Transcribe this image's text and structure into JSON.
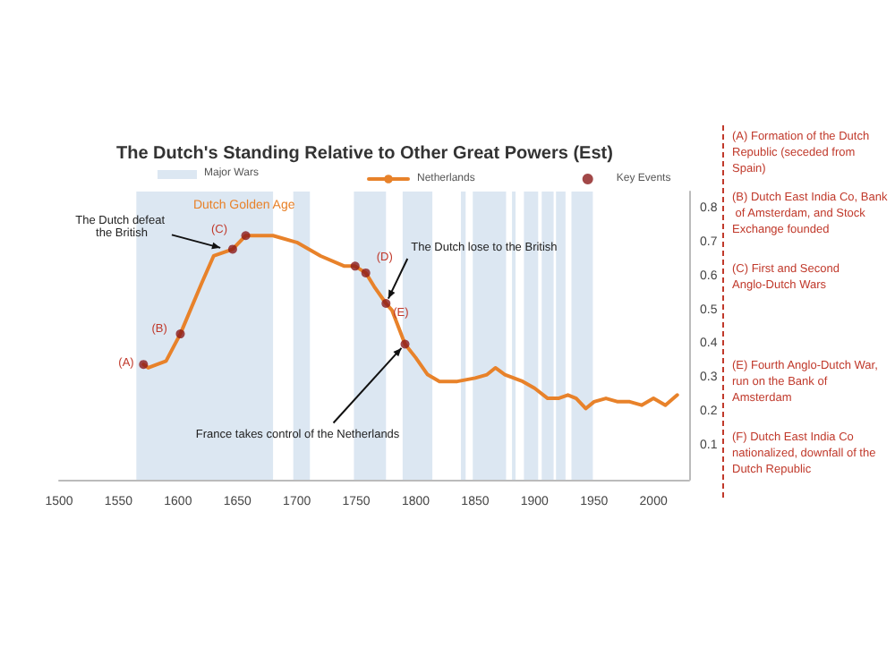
{
  "chart_data": {
    "type": "line",
    "title": "The Dutch's Standing Relative to Other Great Powers (Est)",
    "xlim": [
      1500,
      2030
    ],
    "xticks": [
      1500,
      1550,
      1600,
      1650,
      1700,
      1750,
      1800,
      1850,
      1900,
      1950,
      2000
    ],
    "ylim": [
      0,
      0.85
    ],
    "yticks": [
      0.1,
      0.2,
      0.3,
      0.4,
      0.5,
      0.6,
      0.7,
      0.8
    ],
    "grid": false,
    "legend": "top",
    "marker": "none",
    "line_style": "solid",
    "series": [
      {
        "name": "Netherlands",
        "color": "#e8822a",
        "x": [
          1571,
          1575,
          1590,
          1602,
          1620,
          1630,
          1646,
          1657,
          1670,
          1680,
          1700,
          1720,
          1740,
          1749,
          1758,
          1765,
          1775,
          1780,
          1791,
          1800,
          1810,
          1820,
          1835,
          1850,
          1860,
          1867,
          1875,
          1890,
          1900,
          1911,
          1920,
          1928,
          1935,
          1943,
          1950,
          1960,
          1970,
          1980,
          1990,
          2000,
          2010,
          2020
        ],
        "values": [
          0.34,
          0.33,
          0.35,
          0.43,
          0.58,
          0.66,
          0.68,
          0.72,
          0.72,
          0.72,
          0.7,
          0.66,
          0.63,
          0.63,
          0.61,
          0.57,
          0.52,
          0.5,
          0.4,
          0.36,
          0.31,
          0.29,
          0.29,
          0.3,
          0.31,
          0.33,
          0.31,
          0.29,
          0.27,
          0.24,
          0.24,
          0.25,
          0.24,
          0.21,
          0.23,
          0.24,
          0.23,
          0.23,
          0.22,
          0.24,
          0.22,
          0.25
        ]
      },
      {
        "name": "Key Events",
        "color": "#8b1a1a",
        "type": "scatter",
        "marker": "circle",
        "x": [
          1571,
          1602,
          1646,
          1657,
          1749,
          1758,
          1775,
          1791
        ],
        "values": [
          0.34,
          0.43,
          0.68,
          0.72,
          0.63,
          0.61,
          0.52,
          0.4
        ]
      }
    ],
    "bands": [
      {
        "axis": "x",
        "from": 1565,
        "to": 1680,
        "label": "Major Wars",
        "color": "#dce7f2"
      },
      {
        "axis": "x",
        "from": 1697,
        "to": 1711,
        "color": "#dce7f2"
      },
      {
        "axis": "x",
        "from": 1748,
        "to": 1775,
        "color": "#dce7f2"
      },
      {
        "axis": "x",
        "from": 1789,
        "to": 1814,
        "color": "#dce7f2"
      },
      {
        "axis": "x",
        "from": 1838,
        "to": 1842,
        "color": "#dce7f2"
      },
      {
        "axis": "x",
        "from": 1848,
        "to": 1876,
        "color": "#dce7f2"
      },
      {
        "axis": "x",
        "from": 1881,
        "to": 1884,
        "color": "#dce7f2"
      },
      {
        "axis": "x",
        "from": 1891,
        "to": 1903,
        "color": "#dce7f2"
      },
      {
        "axis": "x",
        "from": 1906,
        "to": 1916,
        "color": "#dce7f2"
      },
      {
        "axis": "x",
        "from": 1918,
        "to": 1926,
        "color": "#dce7f2"
      },
      {
        "axis": "x",
        "from": 1931,
        "to": 1949,
        "color": "#dce7f2"
      }
    ],
    "annotations": [
      {
        "text": "(A)",
        "x": 1571,
        "y": 0.34
      },
      {
        "text": "(B)",
        "x": 1602,
        "y": 0.43
      },
      {
        "text": "(C)",
        "x": 1646,
        "y": 0.68
      },
      {
        "text": "(D)",
        "x": 1758,
        "y": 0.61
      },
      {
        "text": "(E)",
        "x": 1775,
        "y": 0.52
      },
      {
        "text": "Dutch Golden Age",
        "x": 1655,
        "y": 0.72
      },
      {
        "text": "The Dutch defeat the British",
        "x": 1640,
        "y": 0.68
      },
      {
        "text": "The Dutch lose to the British",
        "x": 1775,
        "y": 0.52
      },
      {
        "text": "France takes control of the Netherlands",
        "x": 1791,
        "y": 0.4
      },
      "(A) Formation of the Dutch Republic (seceded from Spain)",
      "(B) Dutch East India Co, Bank of Amsterdam, and Stock Exchange founded",
      "(C) First and Second Anglo-Dutch Wars",
      "(E) Fourth Anglo-Dutch War, run on the Bank of Amsterdam",
      "(F) Dutch East India Co nationalized, downfall of the Dutch Republic"
    ]
  }
}
